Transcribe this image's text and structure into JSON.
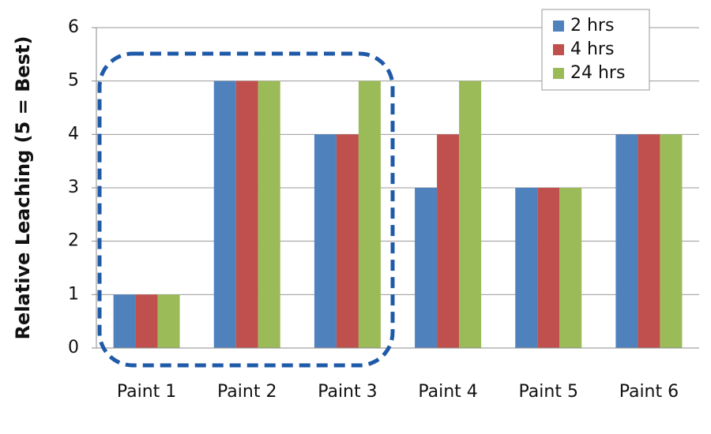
{
  "chart_data": {
    "type": "bar",
    "y_axis_label": "Relative Leaching (5 = Best)",
    "categories": [
      "Paint 1",
      "Paint 2",
      "Paint 3",
      "Paint 4",
      "Paint 5",
      "Paint 6"
    ],
    "series": [
      {
        "name": "2 hrs",
        "color": "#4f81bd",
        "values": [
          1,
          5,
          4,
          3,
          3,
          4
        ]
      },
      {
        "name": "4 hrs",
        "color": "#c0504d",
        "values": [
          1,
          5,
          4,
          4,
          3,
          4
        ]
      },
      {
        "name": "24 hrs",
        "color": "#9bbb59",
        "values": [
          1,
          5,
          5,
          5,
          3,
          4
        ]
      }
    ],
    "ylim": [
      0,
      6
    ],
    "yticks": [
      0,
      1,
      2,
      3,
      4,
      5,
      6
    ],
    "grid": true,
    "legend": "upper right"
  }
}
